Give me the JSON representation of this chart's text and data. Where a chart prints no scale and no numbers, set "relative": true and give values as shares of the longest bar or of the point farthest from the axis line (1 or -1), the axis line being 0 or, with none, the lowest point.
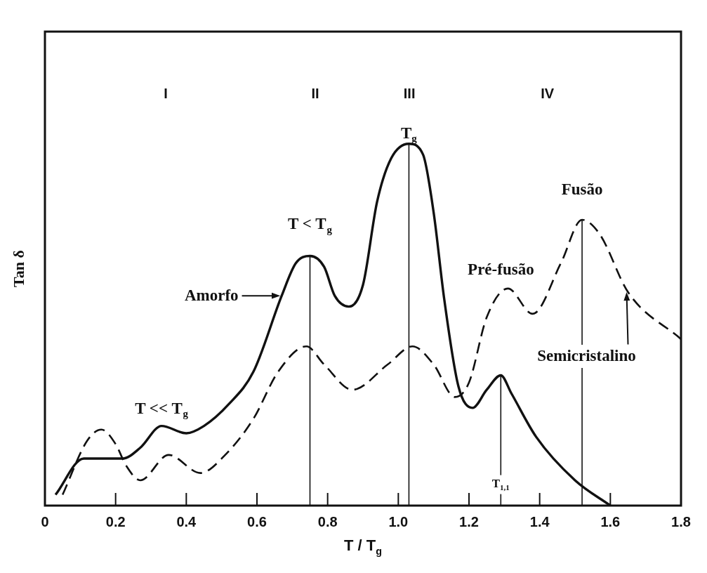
{
  "chart_data": {
    "type": "line",
    "xlabel": "T / T$_{g}$",
    "ylabel": "Tan δ",
    "relative": true,
    "xlim": [
      0,
      1.8
    ],
    "xticks": [
      0,
      0.2,
      0.4,
      0.6,
      0.8,
      {
        "value": 1,
        "label": "1.0"
      },
      1.2,
      1.4,
      1.6,
      1.8
    ],
    "grid": false,
    "legend": false,
    "marker": "none",
    "series": [
      {
        "color": "#111111",
        "line_style": "solid",
        "x": [
          0.03,
          0.11,
          0.13,
          0.22,
          0.27,
          0.33,
          0.4,
          0.45,
          0.52,
          0.59,
          0.67,
          0.71,
          0.75,
          0.79,
          0.82,
          0.86,
          0.9,
          0.94,
          0.98,
          1.03,
          1.07,
          1.1,
          1.13,
          1.17,
          1.21,
          1.25,
          1.29,
          1.32,
          1.39,
          1.5,
          1.6
        ],
        "values": [
          0.03,
          0.13,
          0.13,
          0.13,
          0.16,
          0.22,
          0.2,
          0.22,
          0.28,
          0.37,
          0.58,
          0.67,
          0.69,
          0.66,
          0.58,
          0.55,
          0.61,
          0.84,
          0.96,
          1,
          0.97,
          0.81,
          0.57,
          0.33,
          0.27,
          0.32,
          0.36,
          0.31,
          0.19,
          0.07,
          0
        ]
      },
      {
        "color": "#111111",
        "line_style": "dashed",
        "x": [
          0.05,
          0.12,
          0.16,
          0.2,
          0.23,
          0.27,
          0.35,
          0.44,
          0.51,
          0.59,
          0.66,
          0.74,
          0.79,
          0.87,
          0.97,
          1.04,
          1.1,
          1.16,
          1.2,
          1.25,
          1.31,
          1.38,
          1.46,
          1.52,
          1.57,
          1.65,
          1.8
        ],
        "values": [
          0.03,
          0.18,
          0.21,
          0.17,
          0.11,
          0.07,
          0.14,
          0.09,
          0.14,
          0.24,
          0.37,
          0.44,
          0.39,
          0.32,
          0.39,
          0.44,
          0.39,
          0.3,
          0.34,
          0.52,
          0.6,
          0.53,
          0.67,
          0.79,
          0.75,
          0.59,
          0.46
        ]
      }
    ],
    "ref_lines": [
      {
        "axis": "x",
        "value": 0.75
      },
      {
        "axis": "x",
        "value": 1.03
      },
      {
        "axis": "x",
        "value": 1.29
      },
      {
        "axis": "x",
        "value": 1.52
      }
    ],
    "annotations": [
      "I",
      "II",
      "III",
      "IV",
      {
        "text": "T$_{g}$",
        "x": 1.03,
        "y": 1
      },
      {
        "text": "T < T$_{g}$",
        "x": 0.75,
        "y": 0.69
      },
      {
        "text": "T << T$_{g}$",
        "x": 0.33,
        "y": 0.22
      },
      {
        "text": "T$_{1,1}$",
        "x": 1.29,
        "y": 0.09
      },
      {
        "text": "Fusão",
        "x": 1.52,
        "y": 0.79
      },
      {
        "text": "Pré-fusão",
        "x": 1.31,
        "y": 0.6
      },
      {
        "text": "Amorfo",
        "x": 0.67,
        "y": 0.58
      },
      {
        "text": "Semicristalino",
        "x": 1.65,
        "y": 0.59
      }
    ]
  }
}
